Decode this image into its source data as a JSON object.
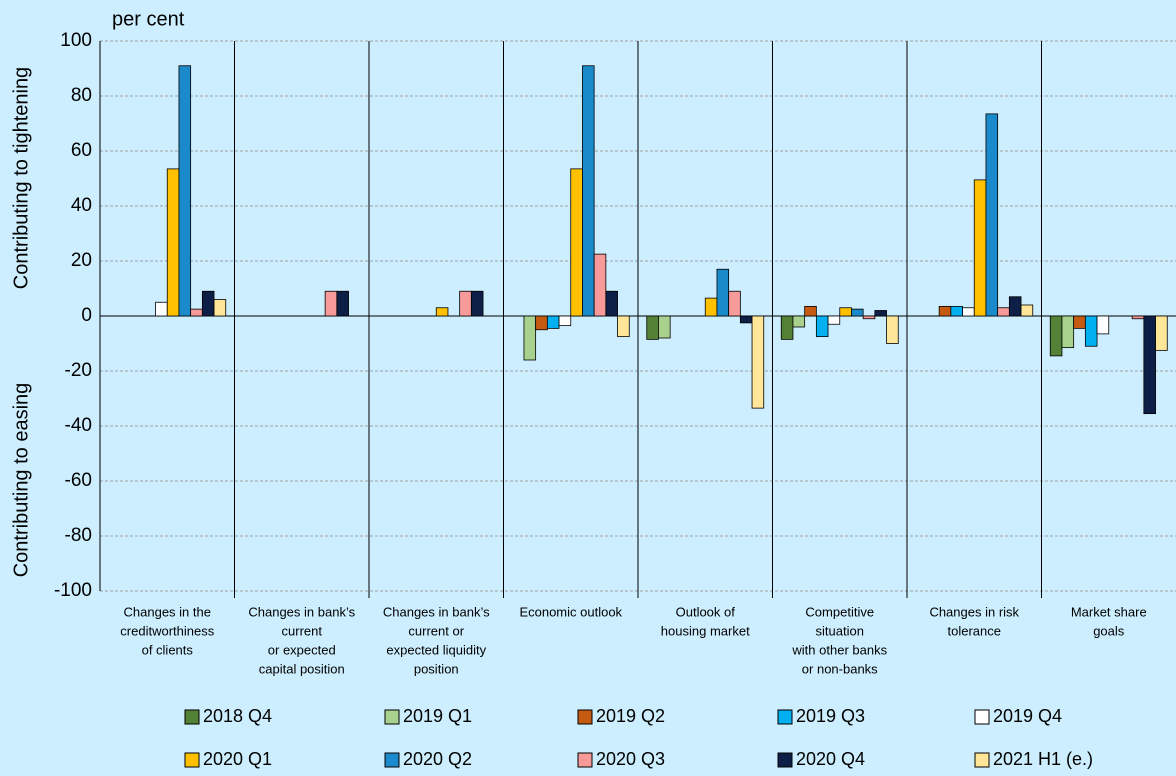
{
  "chart_data": {
    "type": "bar",
    "unit_label": "per cent",
    "y_label_top": "Contributing to tightening",
    "y_label_bottom": "Contributing to easing",
    "categories": [
      [
        "Changes in the",
        "creditworthiness",
        "of clients"
      ],
      [
        "Changes in bank’s",
        "current",
        "or expected",
        "capital position"
      ],
      [
        "Changes in bank’s",
        "current or",
        "expected liquidity",
        "position"
      ],
      [
        "Economic outlook"
      ],
      [
        "Outlook of",
        "housing market"
      ],
      [
        "Competitive",
        "situation",
        "with other banks",
        "or non-banks"
      ],
      [
        "Changes in risk",
        "tolerance"
      ],
      [
        "Market share",
        "goals"
      ]
    ],
    "series": [
      {
        "name": "2018 Q4",
        "color": "#538135",
        "values": [
          0,
          0,
          0,
          0,
          -8.5,
          -8.5,
          0,
          -14.5
        ]
      },
      {
        "name": "2019 Q1",
        "color": "#a9d18e",
        "values": [
          0,
          0,
          0,
          -16,
          -8,
          -4,
          0,
          -11.5
        ]
      },
      {
        "name": "2019 Q2",
        "color": "#c55a11",
        "values": [
          0,
          0,
          0,
          -5,
          0,
          3.5,
          3.5,
          -4.5
        ]
      },
      {
        "name": "2019 Q3",
        "color": "#00b0f0",
        "values": [
          0,
          0,
          0,
          -4.5,
          0,
          -7.5,
          3.5,
          -11
        ]
      },
      {
        "name": "2019 Q4",
        "color": "#ffffff",
        "values": [
          5,
          0,
          0,
          -3.5,
          0,
          -3,
          3,
          -6.5
        ]
      },
      {
        "name": "2020 Q1",
        "color": "#ffc000",
        "values": [
          53.5,
          0,
          3,
          53.5,
          6.5,
          3,
          49.5,
          0
        ]
      },
      {
        "name": "2020 Q2",
        "color": "#1b8acb",
        "values": [
          91,
          0,
          0,
          91,
          17,
          2.5,
          73.5,
          0
        ]
      },
      {
        "name": "2020 Q3",
        "color": "#f79a9a",
        "values": [
          2.5,
          9,
          9,
          22.5,
          9,
          -1,
          3,
          -1
        ]
      },
      {
        "name": "2020 Q4",
        "color": "#0e1f47",
        "values": [
          9,
          9,
          9,
          9,
          -2.5,
          2,
          7,
          -35.5
        ]
      },
      {
        "name": "2021 H1 (e.)",
        "color": "#ffe699",
        "values": [
          6,
          0,
          0,
          -7.5,
          -33.5,
          -10,
          4,
          -12.5
        ]
      }
    ],
    "ylim": [
      -100,
      100
    ],
    "yticks": [
      -100,
      -80,
      -60,
      -40,
      -20,
      0,
      20,
      40,
      60,
      80,
      100
    ],
    "grid": true
  }
}
